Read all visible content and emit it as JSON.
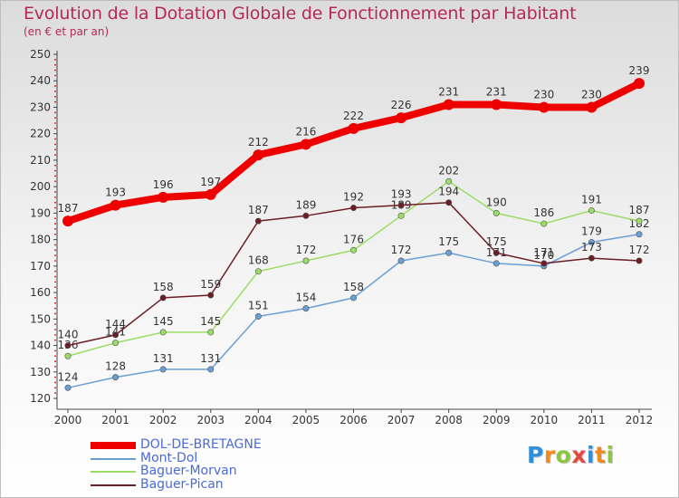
{
  "chart_data": {
    "type": "line",
    "title": "Evolution de la Dotation Globale de Fonctionnement par Habitant",
    "subtitle": "(en € et par an)",
    "xlabel": "",
    "ylabel": "",
    "x": [
      "2000",
      "2001",
      "2002",
      "2003",
      "2004",
      "2005",
      "2006",
      "2007",
      "2008",
      "2009",
      "2010",
      "2011",
      "2012"
    ],
    "ylim": [
      120,
      250
    ],
    "yticks": [
      120,
      130,
      140,
      150,
      160,
      170,
      180,
      190,
      200,
      210,
      220,
      230,
      240,
      250
    ],
    "grid": false,
    "legend_position": "bottom-left",
    "series": [
      {
        "name": "DOL-DE-BRETAGNE",
        "color": "#ee0000",
        "width": "thick",
        "values": [
          187,
          193,
          196,
          197,
          212,
          216,
          222,
          226,
          231,
          231,
          230,
          230,
          239
        ]
      },
      {
        "name": "Mont-Dol",
        "color": "#6a9fd4",
        "width": "thin",
        "values": [
          124,
          128,
          131,
          131,
          151,
          154,
          158,
          172,
          175,
          171,
          170,
          179,
          182
        ]
      },
      {
        "name": "Baguer-Morvan",
        "color": "#99dd66",
        "width": "thin",
        "values": [
          136,
          141,
          145,
          145,
          168,
          172,
          176,
          189,
          202,
          190,
          186,
          191,
          187
        ]
      },
      {
        "name": "Baguer-Pican",
        "color": "#6b1e26",
        "width": "thin",
        "values": [
          140,
          144,
          158,
          159,
          187,
          189,
          192,
          193,
          194,
          175,
          171,
          173,
          172
        ]
      }
    ]
  },
  "logo": {
    "letters": [
      "P",
      "r",
      "o",
      "x",
      "i",
      "t",
      "i"
    ],
    "colors": [
      "#2f8fd8",
      "#f08a1e",
      "#8cc63f",
      "#e8483b",
      "#2f8fd8",
      "#f08a1e",
      "#8cc63f"
    ]
  }
}
